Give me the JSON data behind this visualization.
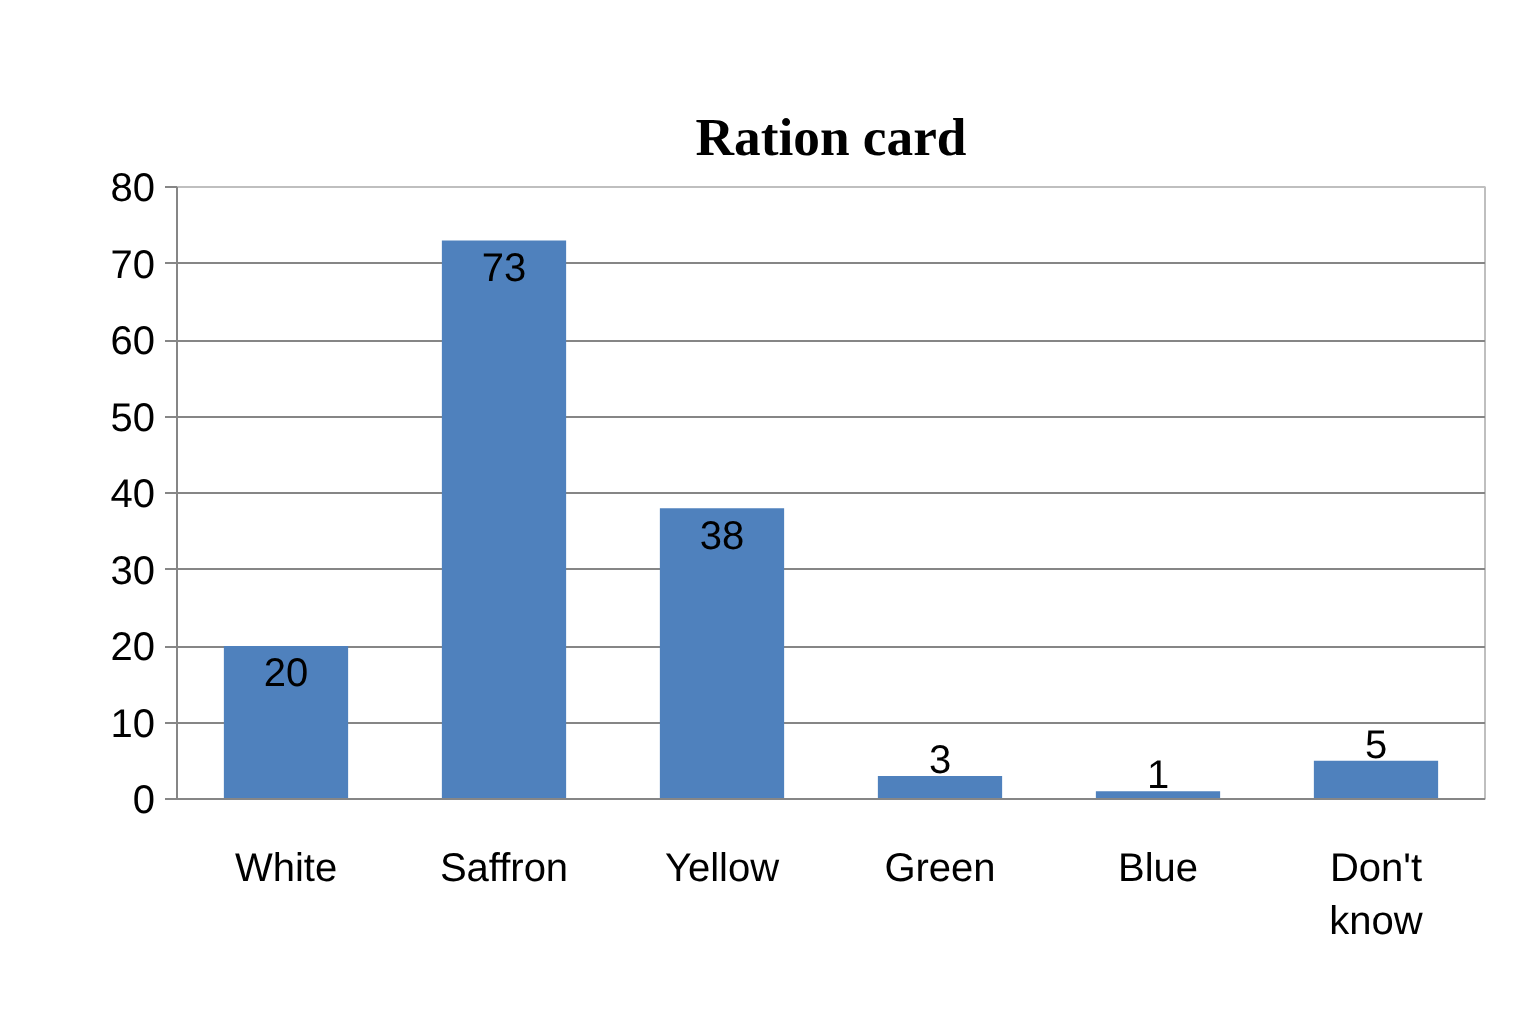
{
  "chart_data": {
    "type": "bar",
    "title": "Ration card",
    "categories": [
      "White",
      "Saffron",
      "Yellow",
      "Green",
      "Blue",
      "Don't know"
    ],
    "values": [
      20,
      73,
      38,
      3,
      1,
      5
    ],
    "color": "#4f81bd",
    "ylim": [
      0,
      80
    ],
    "yticks": [
      0,
      10,
      20,
      30,
      40,
      50,
      60,
      70,
      80
    ],
    "grid": "y",
    "data_labels": true
  }
}
